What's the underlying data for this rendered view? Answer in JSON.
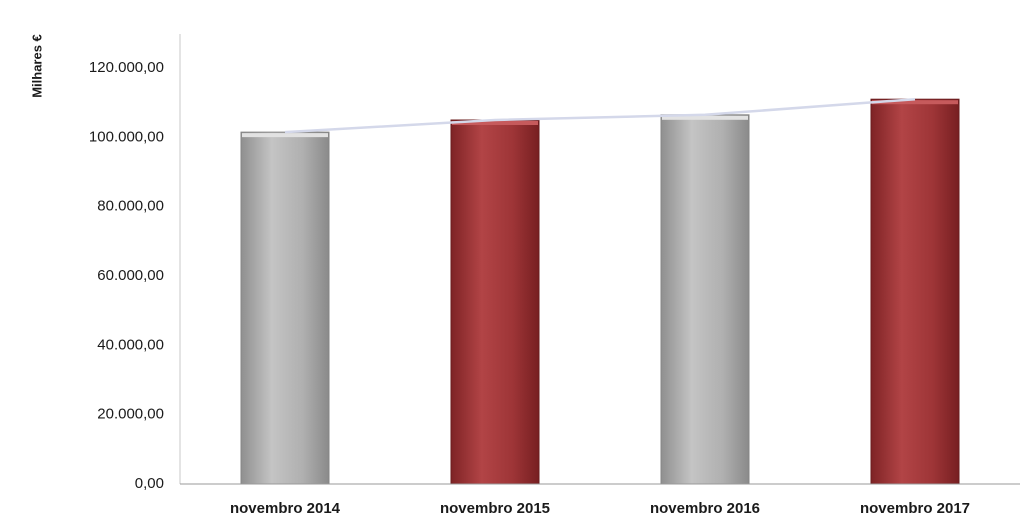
{
  "chart_data": {
    "type": "bar",
    "title": "",
    "xlabel": "",
    "ylabel": "Milhares €",
    "categories": [
      "novembro 2014",
      "novembro 2015",
      "novembro 2016",
      "novembro 2017"
    ],
    "values": [
      101500,
      105000,
      106500,
      111000
    ],
    "bar_colors": [
      "#b3b3b3",
      "#a3383a",
      "#b3b3b3",
      "#a3383a"
    ],
    "trend_line": {
      "values": [
        101500,
        105000,
        106500,
        111000
      ],
      "color": "#d4d8ea"
    },
    "y_ticks": [
      "0,00",
      "20.000,00",
      "40.000,00",
      "60.000,00",
      "80.000,00",
      "100.000,00",
      "120.000,00"
    ],
    "ylim": [
      0,
      120000
    ],
    "grid": false,
    "legend": "none"
  }
}
